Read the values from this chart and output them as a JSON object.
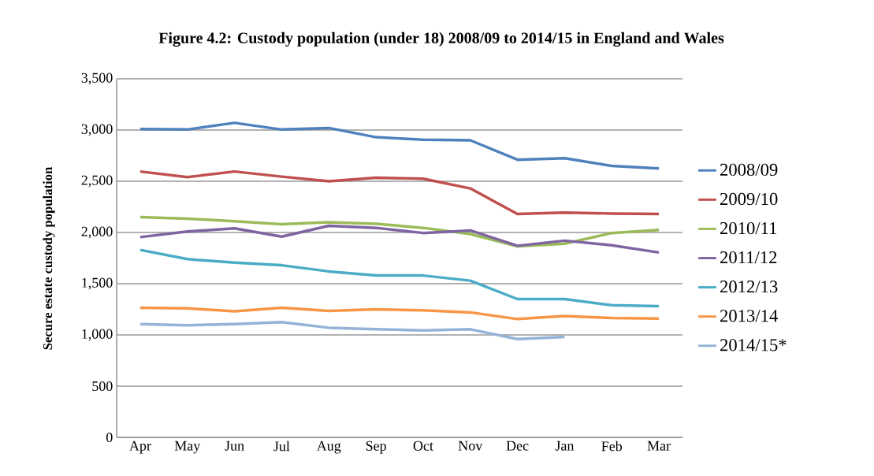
{
  "chart_data": {
    "type": "line",
    "title": "Figure 4.2: Custody population (under 18) 2008/09 to 2014/15 in England and Wales",
    "ylabel": "Secure estate custody population",
    "categories": [
      "Apr",
      "May",
      "Jun",
      "Jul",
      "Aug",
      "Sep",
      "Oct",
      "Nov",
      "Dec",
      "Jan",
      "Feb",
      "Mar"
    ],
    "ylim": [
      0,
      3500
    ],
    "yticks": [
      0,
      500,
      {
        "value": 1000,
        "label": "1,000"
      },
      {
        "value": 1500,
        "label": "1,500"
      },
      {
        "value": 2000,
        "label": "2,000"
      },
      {
        "value": 2500,
        "label": "2,500"
      },
      {
        "value": 3000,
        "label": "3,000"
      },
      {
        "value": 3500,
        "label": "3,500"
      }
    ],
    "grid": "y",
    "legend": "right",
    "marker": "none",
    "line_style": "solid",
    "series": [
      {
        "name": "2008/09",
        "color": "#4f81bd",
        "values": [
          3010,
          3005,
          3070,
          3005,
          3020,
          2930,
          2905,
          2900,
          2710,
          2725,
          2650,
          2625
        ]
      },
      {
        "name": "2009/10",
        "color": "#c0504d",
        "values": [
          2595,
          2540,
          2595,
          2545,
          2500,
          2535,
          2525,
          2430,
          2180,
          2195,
          2185,
          2180
        ]
      },
      {
        "name": "2010/11",
        "color": "#9bbb59",
        "values": [
          2150,
          2135,
          2110,
          2080,
          2100,
          2085,
          2045,
          1985,
          1865,
          1890,
          1995,
          2025
        ]
      },
      {
        "name": "2011/12",
        "color": "#8064a2",
        "values": [
          1955,
          2010,
          2040,
          1960,
          2065,
          2045,
          1995,
          2020,
          1870,
          1920,
          1875,
          1805
        ]
      },
      {
        "name": "2012/13",
        "color": "#4bacc6",
        "values": [
          1830,
          1740,
          1705,
          1680,
          1620,
          1580,
          1580,
          1530,
          1350,
          1350,
          1290,
          1280
        ]
      },
      {
        "name": "2013/14",
        "color": "#f79646",
        "values": [
          1265,
          1260,
          1230,
          1265,
          1235,
          1250,
          1240,
          1220,
          1155,
          1185,
          1165,
          1160
        ]
      },
      {
        "name": "2014/15*",
        "color": "#95b3d7",
        "values": [
          1105,
          1095,
          1105,
          1125,
          1070,
          1055,
          1045,
          1055,
          960,
          980,
          null,
          null
        ]
      }
    ]
  }
}
